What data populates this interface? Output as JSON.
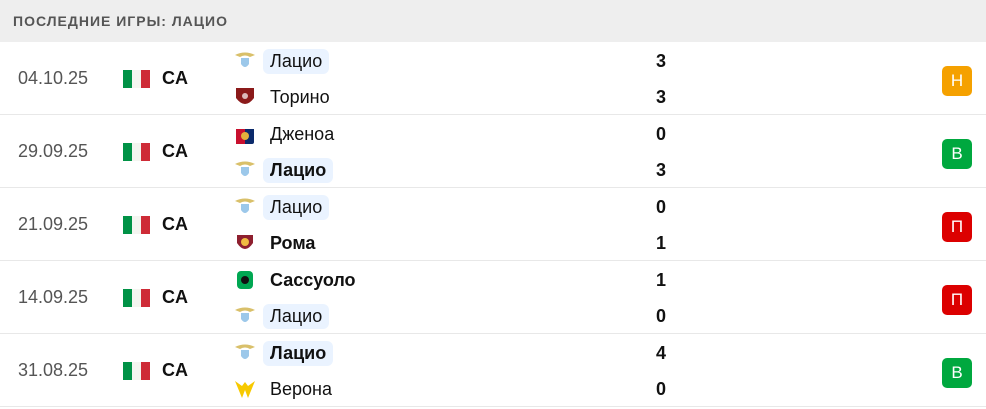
{
  "header": {
    "title": "ПОСЛЕДНИЕ ИГРЫ: ЛАЦИО"
  },
  "matches": [
    {
      "date": "04.10.25",
      "league": "CA",
      "home": {
        "name": "Лацио",
        "logo": "lazio",
        "bold": false,
        "highlight": true
      },
      "away": {
        "name": "Торино",
        "logo": "torino",
        "bold": false,
        "highlight": false
      },
      "home_score": "3",
      "away_score": "3",
      "result": "Н",
      "result_color": "#f5a100"
    },
    {
      "date": "29.09.25",
      "league": "CA",
      "home": {
        "name": "Дженоа",
        "logo": "genoa",
        "bold": false,
        "highlight": false
      },
      "away": {
        "name": "Лацио",
        "logo": "lazio",
        "bold": true,
        "highlight": true
      },
      "home_score": "0",
      "away_score": "3",
      "result": "В",
      "result_color": "#00a83f"
    },
    {
      "date": "21.09.25",
      "league": "CA",
      "home": {
        "name": "Лацио",
        "logo": "lazio",
        "bold": false,
        "highlight": true
      },
      "away": {
        "name": "Рома",
        "logo": "roma",
        "bold": true,
        "highlight": false
      },
      "home_score": "0",
      "away_score": "1",
      "result": "П",
      "result_color": "#dc0000"
    },
    {
      "date": "14.09.25",
      "league": "CA",
      "home": {
        "name": "Сассуоло",
        "logo": "sassuolo",
        "bold": true,
        "highlight": false
      },
      "away": {
        "name": "Лацио",
        "logo": "lazio",
        "bold": false,
        "highlight": true
      },
      "home_score": "1",
      "away_score": "0",
      "result": "П",
      "result_color": "#dc0000"
    },
    {
      "date": "31.08.25",
      "league": "CA",
      "home": {
        "name": "Лацио",
        "logo": "lazio",
        "bold": true,
        "highlight": true
      },
      "away": {
        "name": "Верона",
        "logo": "verona",
        "bold": false,
        "highlight": false
      },
      "home_score": "4",
      "away_score": "0",
      "result": "В",
      "result_color": "#00a83f"
    }
  ]
}
